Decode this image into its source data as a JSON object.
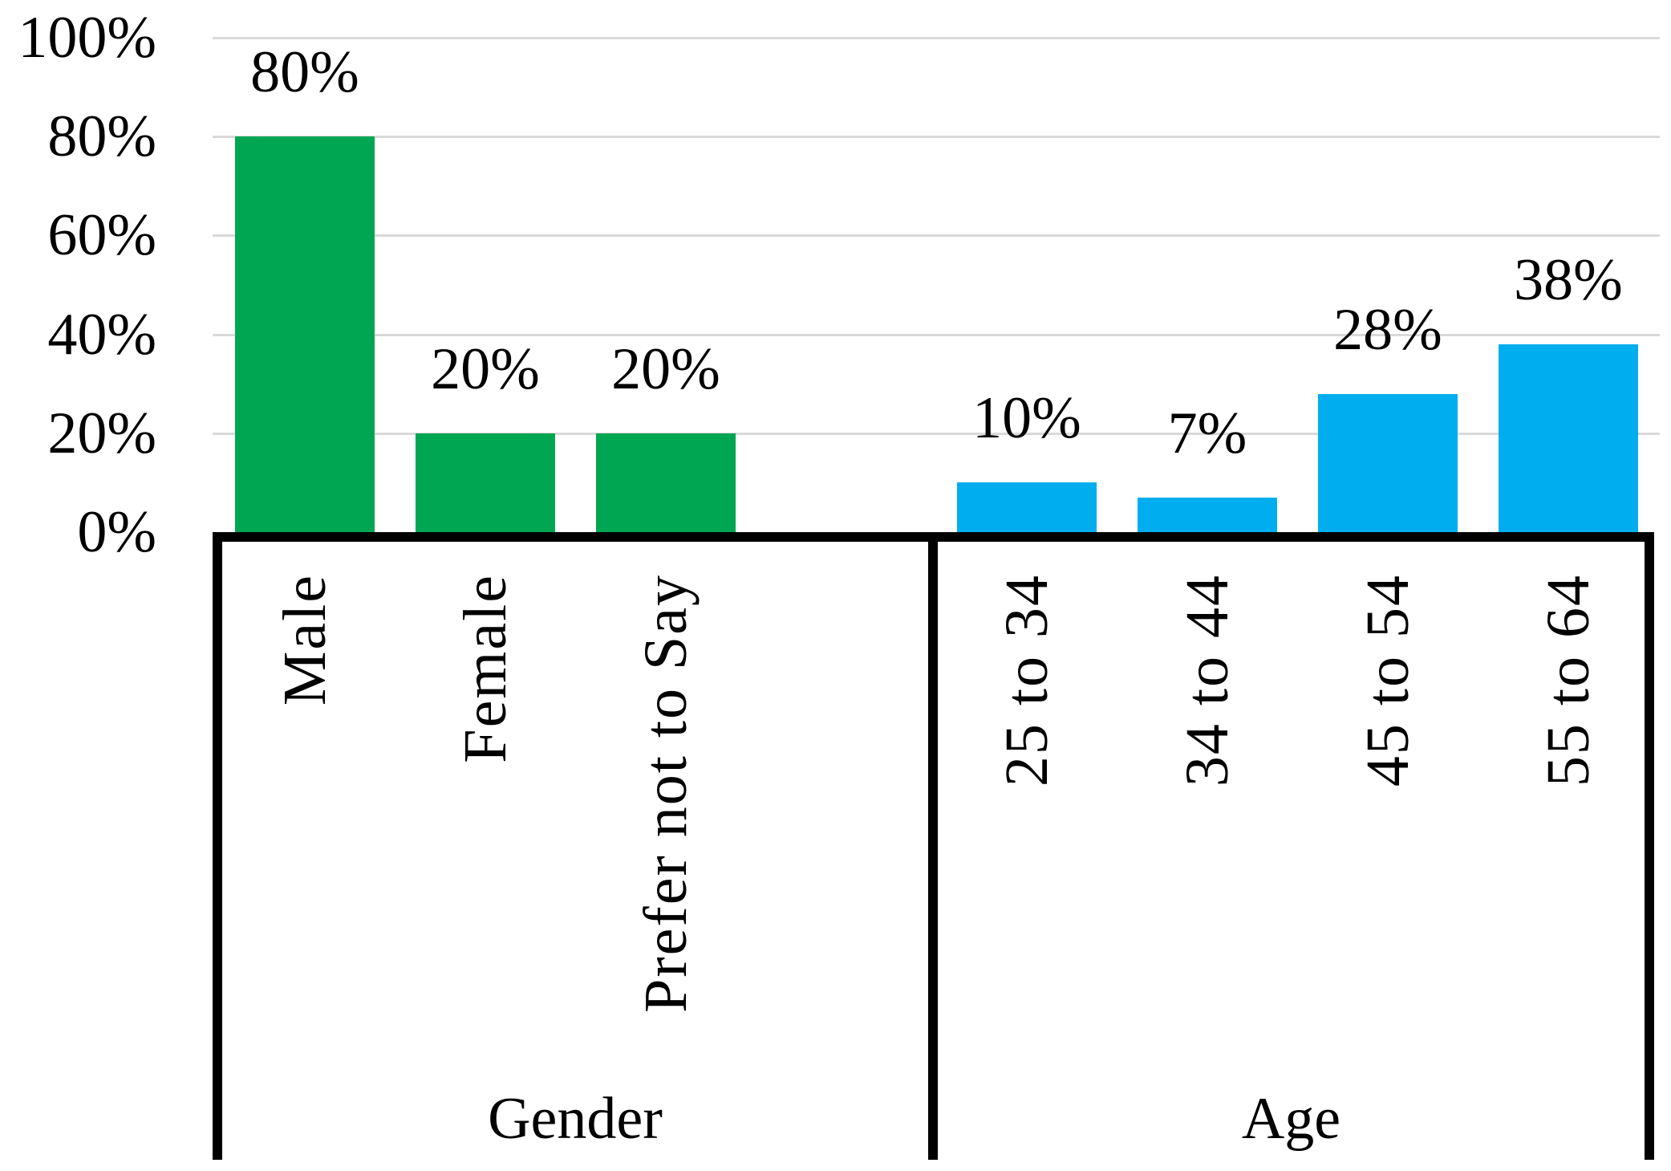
{
  "chart_data": {
    "type": "bar",
    "title": "",
    "xlabel": "",
    "ylabel": "",
    "ylim": [
      0,
      100
    ],
    "grid": true,
    "legend": "none",
    "y_ticks": [
      {
        "label": "100%",
        "value": 100
      },
      {
        "label": "80%",
        "value": 80
      },
      {
        "label": "60%",
        "value": 60
      },
      {
        "label": "40%",
        "value": 40
      },
      {
        "label": "20%",
        "value": 20
      },
      {
        "label": "0%",
        "value": 0
      }
    ],
    "groups": [
      {
        "name": "Gender",
        "bar_color": "#00a651",
        "categories": [
          "Male",
          "Female",
          "Prefer not to Say"
        ],
        "values": [
          80,
          20,
          20
        ],
        "value_labels": [
          "80%",
          "20%",
          "20%"
        ]
      },
      {
        "name": "Age",
        "bar_color": "#00aeef",
        "categories": [
          "25 to 34",
          "34 to 44",
          "45 to 54",
          "55 to 64"
        ],
        "values": [
          10,
          7,
          28,
          38
        ],
        "value_labels": [
          "10%",
          "7%",
          "28%",
          "38%"
        ]
      }
    ]
  },
  "colors": {
    "bar_green": "#00a651",
    "bar_blue": "#00aeef",
    "gridline": "#d9d9d9",
    "axis": "#000000",
    "text": "#000000",
    "background": "#ffffff"
  }
}
